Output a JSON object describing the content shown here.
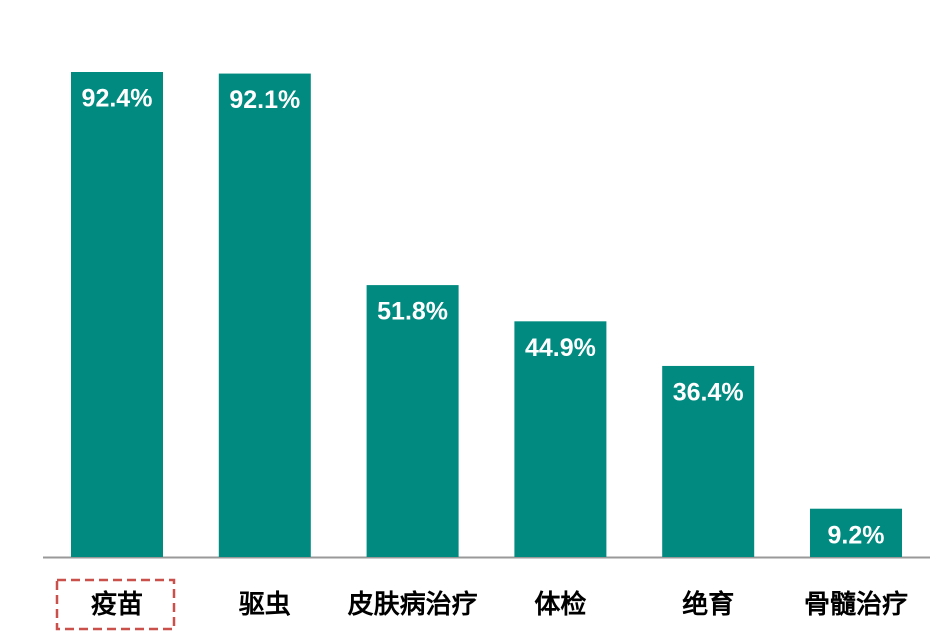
{
  "chart_data": {
    "type": "bar",
    "categories": [
      "疫苗",
      "驱虫",
      "皮肤病治疗",
      "体检",
      "绝育",
      "骨髓治疗"
    ],
    "values": [
      92.4,
      92.1,
      51.8,
      44.9,
      36.4,
      9.2
    ],
    "value_labels": [
      "92.4%",
      "92.1%",
      "51.8%",
      "44.9%",
      "36.4%",
      "9.2%"
    ],
    "color": "#008a80"
  }
}
